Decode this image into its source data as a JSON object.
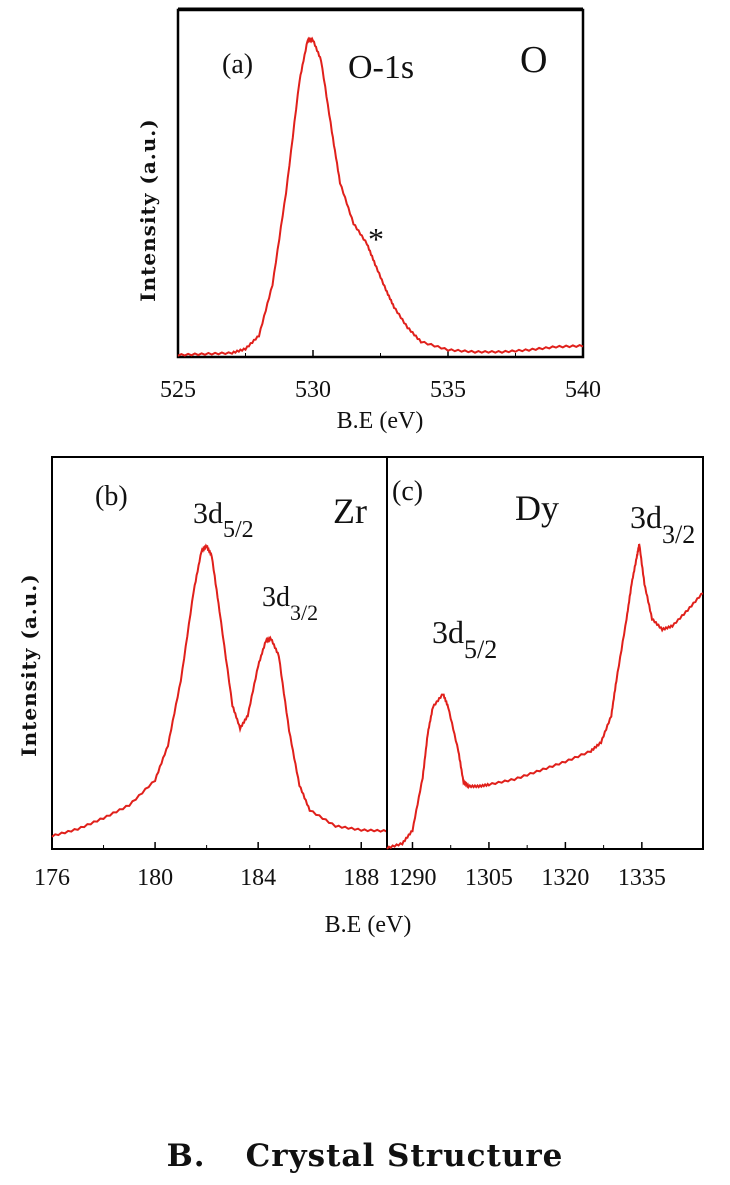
{
  "chart_data": [
    {
      "type": "line",
      "panel_label": "(a)",
      "annotations": [
        "O-1s",
        "O",
        "*"
      ],
      "xlabel": "B.E (eV)",
      "ylabel": "Intensity (a.u.)",
      "xlim": [
        525,
        540
      ],
      "xticks": [
        "525",
        "530",
        "535",
        "540"
      ],
      "series": [
        {
          "color": "#e0201b",
          "x": [
            525,
            526,
            527,
            527.5,
            528,
            528.5,
            529,
            529.5,
            529.8,
            530,
            530.3,
            530.7,
            531,
            531.5,
            532,
            532.3,
            532.7,
            533,
            533.5,
            534,
            535,
            536,
            537,
            538,
            539,
            540
          ],
          "y": [
            1,
            2,
            3,
            7,
            20,
            70,
            160,
            270,
            310,
            310,
            290,
            220,
            170,
            130,
            110,
            90,
            65,
            48,
            28,
            14,
            6,
            4,
            4,
            6,
            9,
            10
          ]
        }
      ]
    },
    {
      "type": "line",
      "panel_label": "(b)",
      "annotations": [
        "Zr",
        "3d5/2",
        "3d3/2"
      ],
      "xlabel": "B.E (eV)",
      "ylabel": "Intensity (a.u.)",
      "xlim": [
        176,
        189
      ],
      "xticks": [
        "176",
        "180",
        "184",
        "188"
      ],
      "series": [
        {
          "color": "#e0201b",
          "x": [
            176,
            177,
            178,
            179,
            180,
            180.5,
            181,
            181.5,
            181.8,
            182,
            182.2,
            182.5,
            183,
            183.3,
            183.6,
            184,
            184.3,
            184.5,
            184.8,
            185.2,
            185.6,
            186,
            187,
            188,
            189
          ],
          "y": [
            4,
            11,
            22,
            35,
            60,
            95,
            160,
            250,
            290,
            295,
            285,
            230,
            135,
            112,
            125,
            175,
            200,
            202,
            185,
            110,
            55,
            30,
            14,
            10,
            9
          ]
        }
      ]
    },
    {
      "type": "line",
      "panel_label": "(c)",
      "annotations": [
        "Dy",
        "3d5/2",
        "3d3/2"
      ],
      "xlabel": "B.E (eV)",
      "ylabel": "",
      "xlim": [
        1285,
        1347
      ],
      "xticks": [
        "1290",
        "1305",
        "1320",
        "1335"
      ],
      "series": [
        {
          "color": "#e0201b",
          "x": [
            1285,
            1288,
            1290,
            1292,
            1293,
            1294,
            1296,
            1297,
            1299,
            1300,
            1301,
            1303,
            1305,
            1310,
            1315,
            1320,
            1325,
            1327,
            1329,
            1330,
            1332,
            1333,
            1334,
            1334.5,
            1335.5,
            1337,
            1339,
            1341,
            1344,
            1347
          ],
          "y": [
            0,
            5,
            20,
            80,
            130,
            160,
            175,
            160,
            110,
            75,
            70,
            70,
            72,
            78,
            88,
            98,
            110,
            120,
            150,
            190,
            260,
            300,
            330,
            345,
            300,
            260,
            248,
            252,
            270,
            290
          ]
        }
      ]
    }
  ],
  "figure": {
    "panels": [
      {
        "id": "a",
        "label": "(a)",
        "xlabel": "B.E (eV)",
        "ylabel": "Intensity (a.u.)",
        "element": "O",
        "peak_main": "O-1s",
        "marker": "*"
      },
      {
        "id": "b",
        "label": "(b)",
        "xlabel": "B.E (eV)",
        "ylabel": "Intensity (a.u.)",
        "element": "Zr",
        "peak1_main": "3d",
        "peak1_sub": "5/2",
        "peak2_main": "3d",
        "peak2_sub": "3/2"
      },
      {
        "id": "c",
        "label": "(c)",
        "element": "Dy",
        "peak1_main": "3d",
        "peak1_sub": "5/2",
        "peak2_main": "3d",
        "peak2_sub": "3/2"
      }
    ]
  },
  "section": {
    "number": "B.",
    "title": "Crystal Structure"
  },
  "colors": {
    "curve": "#e0201b",
    "axis": "#000000",
    "text": "#111111"
  }
}
